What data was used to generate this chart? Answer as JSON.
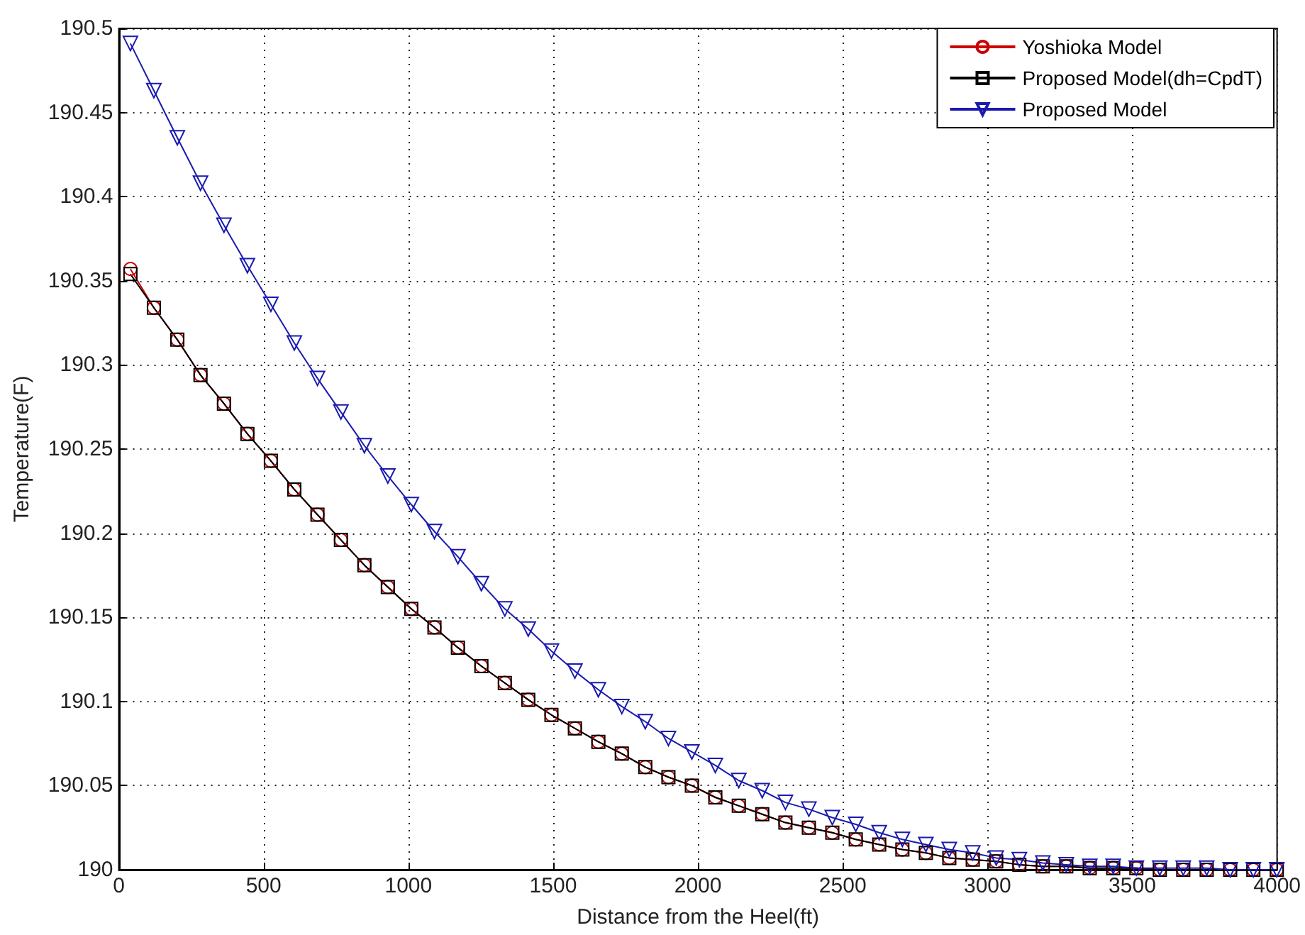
{
  "chart_data": {
    "type": "line",
    "xlabel": "Distance from the Heel(ft)",
    "ylabel": "Temperature(F)",
    "x": [
      40,
      121,
      202,
      282,
      363,
      444,
      525,
      606,
      686,
      767,
      848,
      929,
      1010,
      1090,
      1171,
      1252,
      1333,
      1414,
      1494,
      1575,
      1656,
      1737,
      1818,
      1898,
      1979,
      2060,
      2141,
      2222,
      2302,
      2383,
      2464,
      2545,
      2626,
      2706,
      2787,
      2868,
      2949,
      3030,
      3110,
      3191,
      3272,
      3353,
      3434,
      3514,
      3595,
      3676,
      3757,
      3838,
      3918,
      3999
    ],
    "xlim": [
      0,
      4000
    ],
    "xticks": [
      0,
      500,
      1000,
      1500,
      2000,
      2500,
      3000,
      3500,
      4000
    ],
    "ylim": [
      190,
      190.5
    ],
    "yticks": [
      190,
      190.05,
      190.1,
      190.15,
      190.2,
      190.25,
      190.3,
      190.35,
      190.4,
      190.45,
      190.5
    ],
    "grid": true,
    "legend": "top right",
    "line_style": "solid",
    "series": [
      {
        "name": "Yoshioka Model",
        "color": "#cc0000",
        "marker": "circle",
        "values": [
          190.357,
          190.334,
          190.315,
          190.294,
          190.277,
          190.259,
          190.243,
          190.226,
          190.211,
          190.196,
          190.181,
          190.168,
          190.155,
          190.144,
          190.132,
          190.121,
          190.111,
          190.101,
          190.092,
          190.084,
          190.076,
          190.069,
          190.061,
          190.055,
          190.05,
          190.043,
          190.038,
          190.033,
          190.028,
          190.025,
          190.022,
          190.018,
          190.015,
          190.012,
          190.01,
          190.007,
          190.006,
          190.005,
          190.003,
          190.002,
          190.002,
          190.001,
          190.001,
          190.001,
          190.0,
          190.0,
          190.0,
          190.0,
          190.0,
          190.0
        ]
      },
      {
        "name": "Proposed Model(dh=CpdT)",
        "color": "#000000",
        "marker": "square",
        "values": [
          190.354,
          190.334,
          190.315,
          190.294,
          190.277,
          190.259,
          190.243,
          190.226,
          190.211,
          190.196,
          190.181,
          190.168,
          190.155,
          190.144,
          190.132,
          190.121,
          190.111,
          190.101,
          190.092,
          190.084,
          190.076,
          190.069,
          190.061,
          190.055,
          190.05,
          190.043,
          190.038,
          190.033,
          190.028,
          190.025,
          190.022,
          190.018,
          190.015,
          190.012,
          190.01,
          190.007,
          190.006,
          190.005,
          190.003,
          190.002,
          190.002,
          190.001,
          190.001,
          190.001,
          190.0,
          190.0,
          190.0,
          190.0,
          190.0,
          190.0
        ]
      },
      {
        "name": "Proposed Model",
        "color": "#1a1ab0",
        "marker": "triangle",
        "values": [
          190.491,
          190.463,
          190.435,
          190.408,
          190.383,
          190.359,
          190.336,
          190.313,
          190.292,
          190.272,
          190.252,
          190.234,
          190.217,
          190.201,
          190.186,
          190.17,
          190.155,
          190.143,
          190.13,
          190.118,
          190.107,
          190.097,
          190.088,
          190.078,
          190.07,
          190.062,
          190.053,
          190.047,
          190.04,
          190.036,
          190.031,
          190.027,
          190.022,
          190.018,
          190.015,
          190.012,
          190.01,
          190.007,
          190.006,
          190.004,
          190.003,
          190.002,
          190.002,
          190.001,
          190.001,
          190.001,
          190.001,
          190.0,
          190.0,
          190.0
        ]
      }
    ]
  }
}
